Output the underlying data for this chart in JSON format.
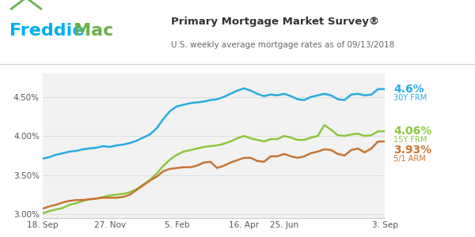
{
  "title": "Primary Mortgage Market Survey®",
  "subtitle": "U.S. weekly average mortgage rates as of 09/13/2018",
  "freddie_blue": "#00aeef",
  "freddie_green": "#6ab04c",
  "line_30y_color": "#29abe2",
  "line_15y_color": "#8dc63f",
  "line_5y_color": "#c87533",
  "bg_color": "#ffffff",
  "plot_bg": "#f2f2f2",
  "ylim": [
    2.95,
    4.8
  ],
  "yticks": [
    3.0,
    3.5,
    4.0,
    4.5
  ],
  "ytick_labels": [
    "3.00%",
    "3.50%",
    "4.00%",
    "4.50%"
  ],
  "xtick_labels": [
    "18. Sep",
    "27. Nov",
    "5. Feb",
    "16. Apr",
    "25. Jun",
    "3. Sep"
  ],
  "xtick_positions": [
    0,
    10,
    20,
    30,
    36,
    51
  ],
  "label_30y": "4.6%",
  "label_15y": "4.06%",
  "label_5y": "3.93%",
  "sublabel_30y": "30Y FRM",
  "sublabel_15y": "15Y FRM",
  "sublabel_5y": "5/1 ARM",
  "x_count": 52,
  "y_30y": [
    3.71,
    3.73,
    3.76,
    3.78,
    3.8,
    3.81,
    3.83,
    3.84,
    3.85,
    3.87,
    3.86,
    3.88,
    3.89,
    3.91,
    3.94,
    3.98,
    4.02,
    4.1,
    4.22,
    4.32,
    4.38,
    4.4,
    4.42,
    4.43,
    4.44,
    4.46,
    4.47,
    4.5,
    4.54,
    4.58,
    4.61,
    4.58,
    4.54,
    4.51,
    4.53,
    4.52,
    4.54,
    4.51,
    4.47,
    4.46,
    4.5,
    4.52,
    4.54,
    4.52,
    4.47,
    4.46,
    4.53,
    4.54,
    4.52,
    4.53,
    4.6,
    4.6
  ],
  "y_15y": [
    3.01,
    3.04,
    3.06,
    3.08,
    3.12,
    3.14,
    3.17,
    3.19,
    3.2,
    3.22,
    3.24,
    3.25,
    3.26,
    3.28,
    3.32,
    3.38,
    3.44,
    3.52,
    3.62,
    3.7,
    3.76,
    3.8,
    3.82,
    3.84,
    3.86,
    3.87,
    3.88,
    3.9,
    3.93,
    3.97,
    4.0,
    3.97,
    3.95,
    3.93,
    3.96,
    3.96,
    4.0,
    3.98,
    3.95,
    3.95,
    3.98,
    4.0,
    4.14,
    4.08,
    4.01,
    4.0,
    4.02,
    4.03,
    4.0,
    4.01,
    4.06,
    4.06
  ],
  "y_5y": [
    3.07,
    3.1,
    3.12,
    3.15,
    3.17,
    3.18,
    3.18,
    3.19,
    3.2,
    3.21,
    3.21,
    3.21,
    3.22,
    3.25,
    3.31,
    3.37,
    3.43,
    3.48,
    3.55,
    3.58,
    3.59,
    3.6,
    3.6,
    3.62,
    3.66,
    3.67,
    3.59,
    3.62,
    3.66,
    3.69,
    3.72,
    3.72,
    3.68,
    3.67,
    3.74,
    3.74,
    3.77,
    3.74,
    3.72,
    3.74,
    3.78,
    3.8,
    3.83,
    3.82,
    3.77,
    3.75,
    3.82,
    3.84,
    3.79,
    3.84,
    3.93,
    3.93
  ],
  "divider_color": "#cccccc",
  "grid_color": "#dddddd"
}
